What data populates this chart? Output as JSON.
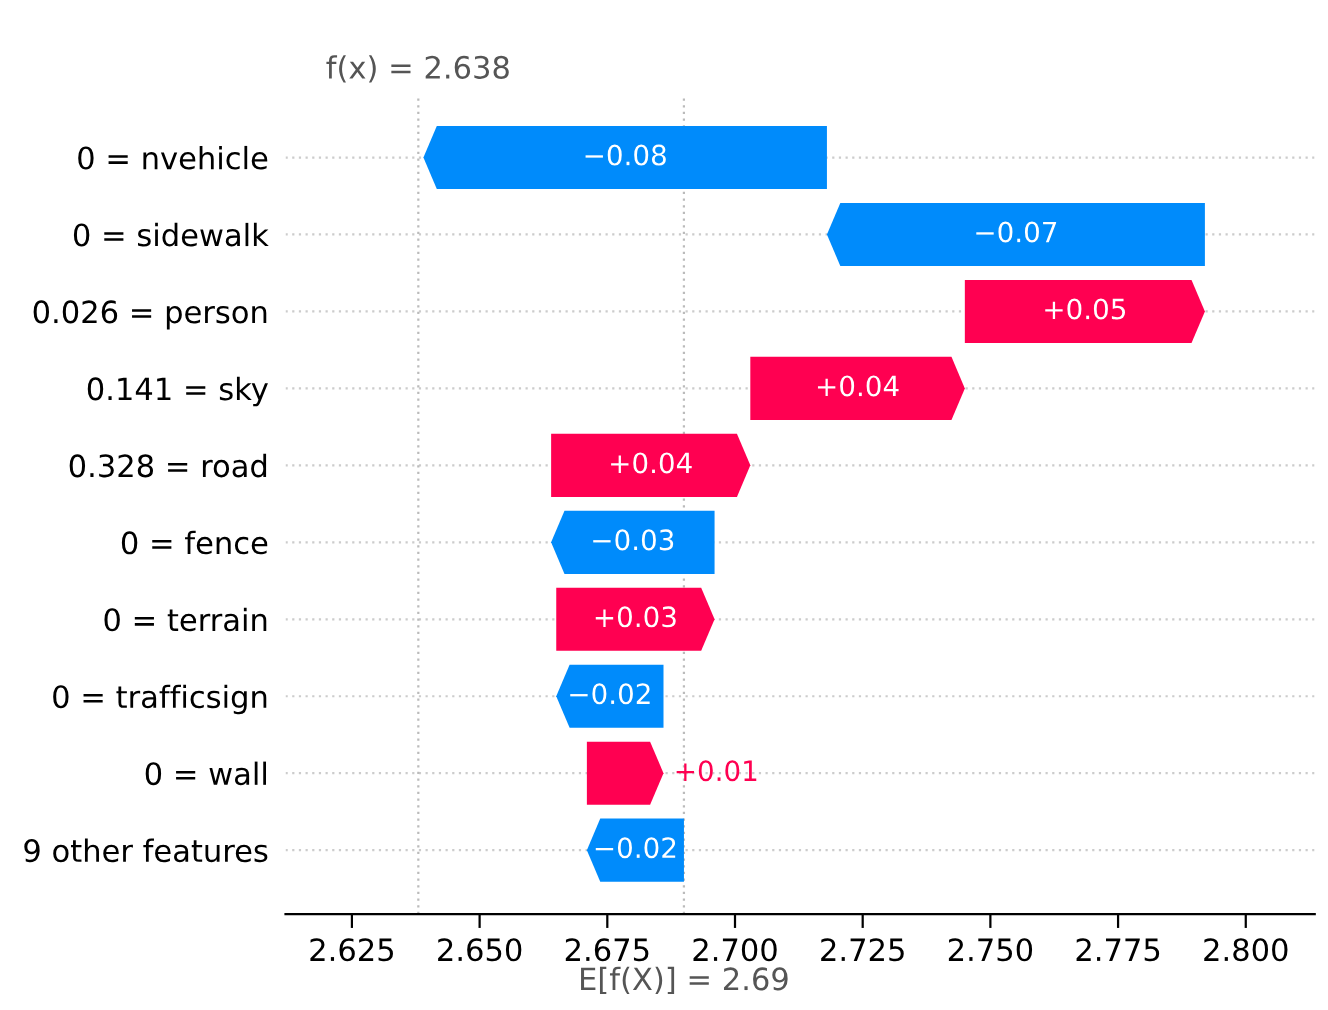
{
  "chart_data": {
    "type": "bar",
    "orientation": "horizontal",
    "categories": [
      "0 = nvehicle",
      "0 = sidewalk",
      "0.026 = person",
      "0.141 = sky",
      "0.328 = road",
      "0 = fence",
      "0 = terrain",
      "0 = trafficsign",
      "0 = wall",
      "9 other features"
    ],
    "base": [
      2.718,
      2.792,
      2.745,
      2.703,
      2.664,
      2.696,
      2.665,
      2.686,
      2.671,
      2.69
    ],
    "values": [
      -0.079,
      -0.074,
      0.047,
      0.042,
      0.039,
      -0.032,
      0.031,
      -0.021,
      0.015,
      -0.019
    ],
    "colors": [
      "#008bfb",
      "#008bfb",
      "#ff0051",
      "#ff0051",
      "#ff0051",
      "#008bfb",
      "#ff0051",
      "#008bfb",
      "#ff0051",
      "#008bfb"
    ],
    "value_labels": [
      "−0.08",
      "−0.07",
      "+0.05",
      "+0.04",
      "+0.04",
      "−0.03",
      "+0.03",
      "−0.02",
      "+0.01",
      "−0.02"
    ],
    "xlim": [
      2.612,
      2.8135
    ],
    "xticks": [
      {
        "value": 2.625,
        "label": "2.625"
      },
      {
        "value": 2.65,
        "label": "2.650"
      },
      {
        "value": 2.675,
        "label": "2.675"
      },
      {
        "value": 2.7,
        "label": "2.700"
      },
      {
        "value": 2.725,
        "label": "2.725"
      },
      {
        "value": 2.75,
        "label": "2.750"
      },
      {
        "value": 2.775,
        "label": "2.775"
      },
      {
        "value": 2.8,
        "label": "2.800"
      }
    ],
    "ref_lines": [
      {
        "axis": "x",
        "value": 2.638,
        "label": "f(x) = 2.638",
        "color": "#bbbbbb",
        "line_style": "dotted"
      },
      {
        "axis": "x",
        "value": 2.69,
        "label": "E[f(X)] = 2.69",
        "color": "#bbbbbb",
        "line_style": "dotted"
      }
    ],
    "grid": "y"
  }
}
